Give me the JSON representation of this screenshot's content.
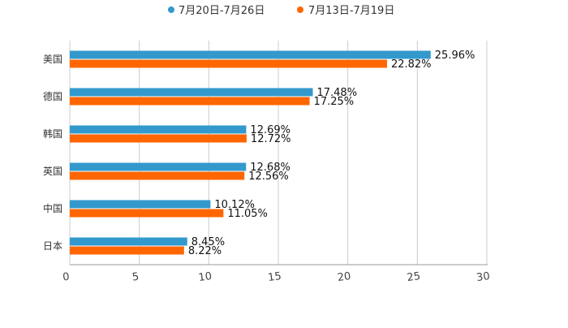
{
  "chart_data": {
    "type": "bar",
    "orientation": "horizontal",
    "title": "",
    "xlabel": "",
    "ylabel": "",
    "xlim": [
      0,
      30
    ],
    "xticks": [
      "0",
      "5",
      "10",
      "15",
      "20",
      "25",
      "30"
    ],
    "grid": true,
    "legend_position": "top-center",
    "categories": [
      "美国",
      "德国",
      "韩国",
      "英国",
      "中国",
      "日本"
    ],
    "series": [
      {
        "name": "7月20日-7月26日",
        "color": "#3399cc",
        "values": [
          25.96,
          17.48,
          12.69,
          12.68,
          10.12,
          8.45
        ],
        "labels": [
          "25.96%",
          "17.48%",
          "12.69%",
          "12.68%",
          "10.12%",
          "8.45%"
        ]
      },
      {
        "name": "7月13日-7月19日",
        "color": "#ff6600",
        "values": [
          22.82,
          17.25,
          12.72,
          12.56,
          11.05,
          8.22
        ],
        "labels": [
          "22.82%",
          "17.25%",
          "12.72%",
          "12.56%",
          "11.05%",
          "8.22%"
        ]
      }
    ]
  }
}
